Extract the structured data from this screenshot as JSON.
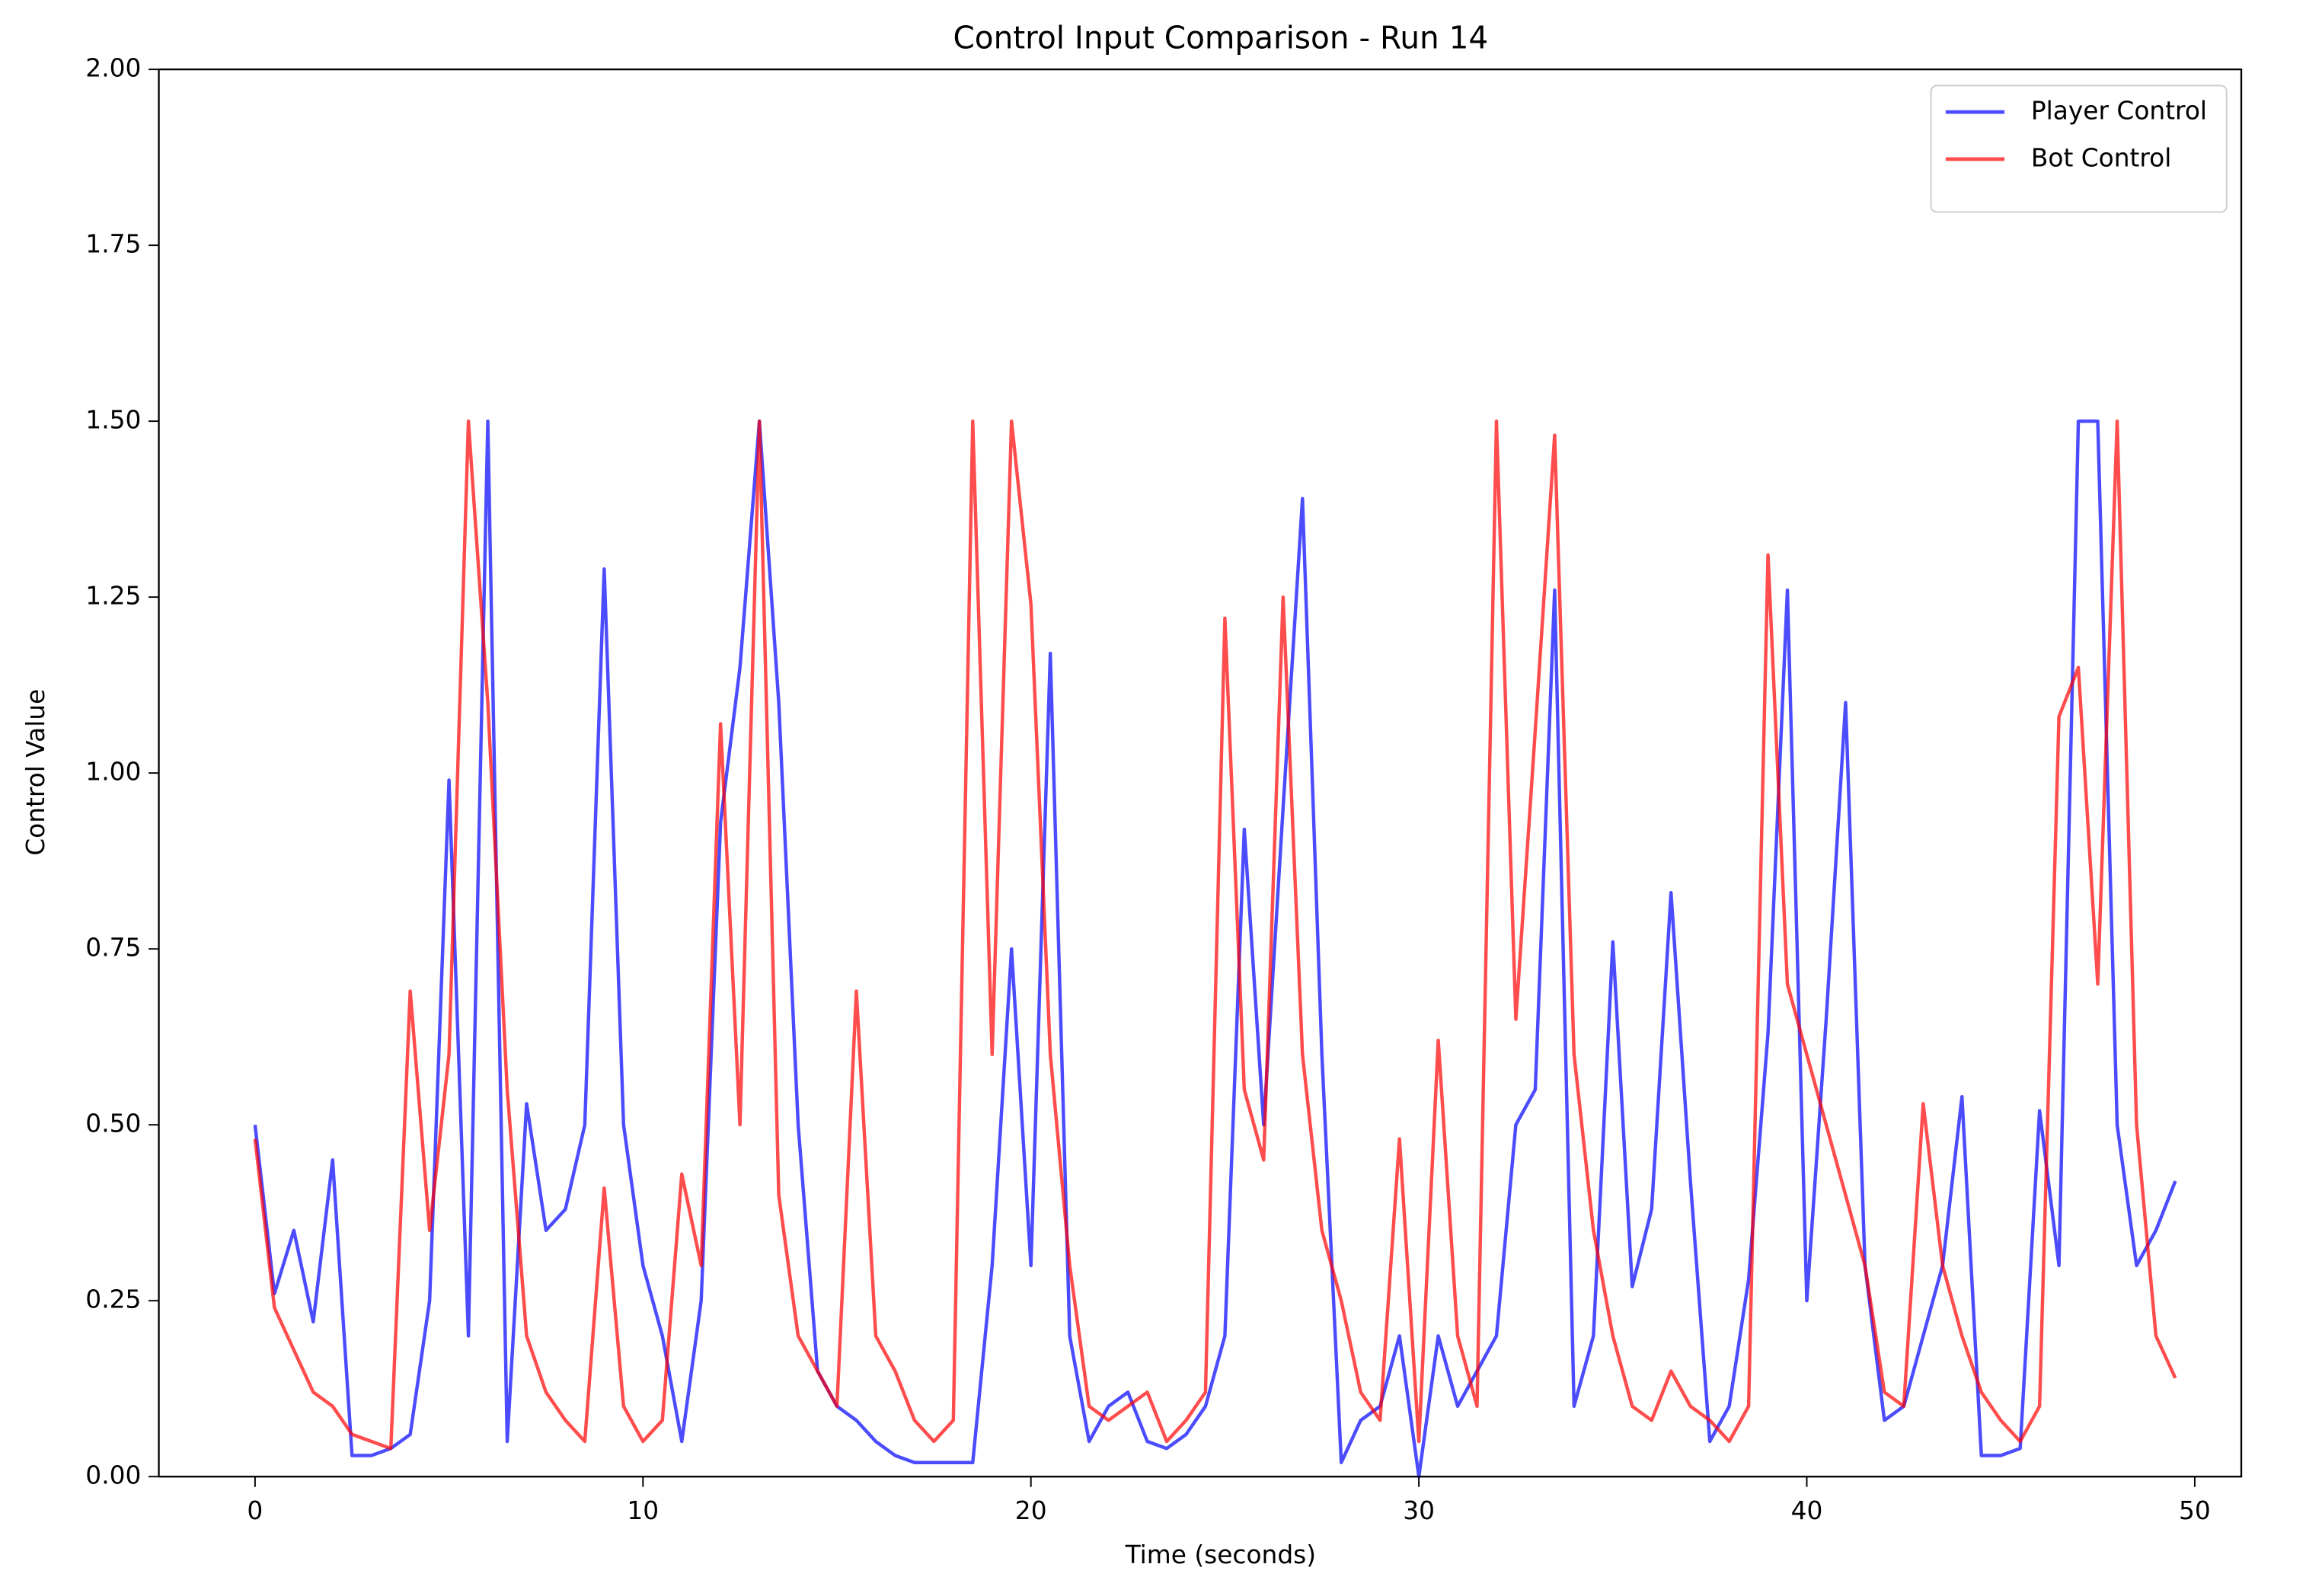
{
  "chart_data": {
    "type": "line",
    "title": "Control Input Comparison - Run 14",
    "xlabel": "Time (seconds)",
    "ylabel": "Control Value",
    "x": [
      0,
      0.5,
      1,
      1.5,
      2,
      2.5,
      3,
      3.5,
      4,
      4.5,
      5,
      5.5,
      6,
      6.5,
      7,
      7.5,
      8,
      8.5,
      9,
      9.5,
      10,
      10.5,
      11,
      11.5,
      12,
      12.5,
      13,
      13.5,
      14,
      14.5,
      15,
      15.5,
      16,
      16.5,
      17,
      17.5,
      18,
      18.5,
      19,
      19.5,
      20,
      20.5,
      21,
      21.5,
      22,
      22.5,
      23,
      23.5,
      24,
      24.5,
      25,
      25.5,
      26,
      26.5,
      27,
      27.5,
      28,
      28.5,
      29,
      29.5,
      30,
      30.5,
      31,
      31.5,
      32,
      32.5,
      33,
      33.5,
      34,
      34.5,
      35,
      35.5,
      36,
      36.5,
      37,
      37.5,
      38,
      38.5,
      39,
      39.5,
      40,
      40.5,
      41,
      41.5,
      42,
      42.5,
      43,
      43.5,
      44,
      44.5,
      45,
      45.5,
      46,
      46.5,
      47,
      47.5,
      48,
      48.5,
      49,
      49.5
    ],
    "series": [
      {
        "name": "Player Control",
        "color": "#0000ff",
        "values": [
          0.5,
          0.26,
          0.35,
          0.22,
          0.45,
          0.03,
          0.03,
          0.04,
          0.06,
          0.25,
          0.99,
          0.2,
          1.5,
          0.05,
          0.53,
          0.35,
          0.38,
          0.5,
          1.29,
          0.5,
          0.3,
          0.2,
          0.05,
          0.25,
          0.93,
          1.15,
          1.5,
          1.1,
          0.5,
          0.15,
          0.1,
          0.08,
          0.05,
          0.03,
          0.02,
          0.02,
          0.02,
          0.02,
          0.3,
          0.75,
          0.3,
          1.17,
          0.2,
          0.05,
          0.1,
          0.12,
          0.05,
          0.04,
          0.06,
          0.1,
          0.2,
          0.92,
          0.5,
          0.95,
          1.39,
          0.6,
          0.02,
          0.08,
          0.1,
          0.2,
          0.0,
          0.2,
          0.1,
          0.15,
          0.2,
          0.5,
          0.55,
          1.26,
          0.1,
          0.2,
          0.76,
          0.27,
          0.38,
          0.83,
          0.42,
          0.05,
          0.1,
          0.28,
          0.63,
          1.26,
          0.25,
          0.65,
          1.1,
          0.3,
          0.08,
          0.1,
          0.2,
          0.3,
          0.54,
          0.03,
          0.03,
          0.04,
          0.52,
          0.3,
          1.5,
          1.5,
          0.5,
          0.3,
          0.35,
          0.42
        ]
      },
      {
        "name": "Bot Control",
        "color": "#ff0000",
        "values": [
          0.48,
          0.24,
          0.18,
          0.12,
          0.1,
          0.06,
          0.05,
          0.04,
          0.69,
          0.35,
          0.6,
          1.5,
          1.1,
          0.55,
          0.2,
          0.12,
          0.08,
          0.05,
          0.41,
          0.1,
          0.05,
          0.08,
          0.43,
          0.3,
          1.07,
          0.5,
          1.5,
          0.4,
          0.2,
          0.15,
          0.1,
          0.69,
          0.2,
          0.15,
          0.08,
          0.05,
          0.08,
          1.5,
          0.6,
          1.5,
          1.24,
          0.6,
          0.3,
          0.1,
          0.08,
          0.1,
          0.12,
          0.05,
          0.08,
          0.12,
          1.22,
          0.55,
          0.45,
          1.25,
          0.6,
          0.35,
          0.25,
          0.12,
          0.08,
          0.48,
          0.05,
          0.62,
          0.2,
          0.1,
          1.5,
          0.65,
          1.06,
          1.48,
          0.6,
          0.35,
          0.2,
          0.1,
          0.08,
          0.15,
          0.1,
          0.08,
          0.05,
          0.1,
          1.31,
          0.7,
          0.6,
          0.5,
          0.4,
          0.3,
          0.12,
          0.1,
          0.53,
          0.3,
          0.2,
          0.12,
          0.08,
          0.05,
          0.1,
          1.08,
          1.15,
          0.7,
          1.5,
          0.5,
          0.2,
          0.14
        ]
      }
    ],
    "alpha": 0.7,
    "xlim": [
      -2.48,
      51.2
    ],
    "ylim": [
      0,
      2
    ],
    "xticks": [
      0,
      10,
      20,
      30,
      40,
      50
    ],
    "yticks": [
      {
        "value": 0,
        "label": "0.00"
      },
      {
        "value": 0.25,
        "label": "0.25"
      },
      {
        "value": 0.5,
        "label": "0.50"
      },
      {
        "value": 0.75,
        "label": "0.75"
      },
      {
        "value": 1,
        "label": "1.00"
      },
      {
        "value": 1.25,
        "label": "1.25"
      },
      {
        "value": 1.5,
        "label": "1.50"
      },
      {
        "value": 1.75,
        "label": "1.75"
      },
      {
        "value": 2,
        "label": "2.00"
      }
    ],
    "legend": "upper right"
  }
}
